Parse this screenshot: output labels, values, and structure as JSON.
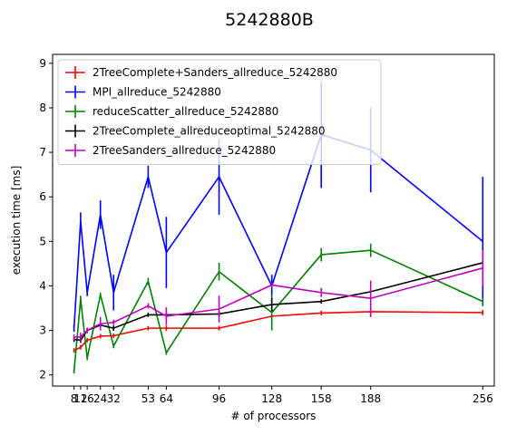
{
  "chart_data": {
    "type": "line",
    "title": "5242880B",
    "xlabel": "# of processors",
    "ylabel": "execution time [ms]",
    "xlim": [
      -5,
      263
    ],
    "ylim": [
      1.75,
      9.2
    ],
    "xticks": [
      8,
      12,
      16,
      24,
      32,
      53,
      64,
      96,
      128,
      158,
      188,
      256
    ],
    "xtick_labels": [
      "8",
      "12",
      "16",
      "24",
      "32",
      "53",
      "64",
      "96",
      "128",
      "158",
      "188",
      "256"
    ],
    "yticks": [
      2,
      3,
      4,
      5,
      6,
      7,
      8,
      9
    ],
    "legend_position": "upper-left",
    "series": [
      {
        "name": "2TreeComplete+Sanders_allreduce_5242880",
        "color": "#ff0000",
        "x": [
          8,
          12,
          16,
          24,
          32,
          53,
          64,
          96,
          128,
          158,
          188,
          256
        ],
        "y": [
          2.55,
          2.62,
          2.78,
          2.87,
          2.88,
          3.05,
          3.05,
          3.05,
          3.32,
          3.39,
          3.42,
          3.4
        ],
        "err": [
          0.05,
          0.05,
          0.05,
          0.05,
          0.05,
          0.05,
          0.06,
          0.05,
          0.06,
          0.05,
          0.12,
          0.06
        ]
      },
      {
        "name": "MPI_allreduce_5242880",
        "color": "#0000ff",
        "x": [
          8,
          12,
          16,
          24,
          32,
          53,
          64,
          96,
          128,
          158,
          188,
          256
        ],
        "y": [
          3.05,
          5.45,
          3.85,
          5.6,
          3.85,
          6.45,
          4.75,
          6.45,
          4.0,
          7.4,
          7.05,
          5.0
        ],
        "err": [
          0.08,
          0.2,
          0.08,
          0.32,
          0.4,
          0.25,
          0.8,
          0.85,
          0.25,
          1.2,
          0.95,
          1.45
        ]
      },
      {
        "name": "reduceScatter_allreduce_5242880",
        "color": "#008000",
        "x": [
          8,
          12,
          16,
          24,
          32,
          53,
          64,
          96,
          128,
          158,
          188,
          256
        ],
        "y": [
          2.08,
          3.7,
          2.38,
          3.8,
          2.65,
          4.1,
          2.5,
          4.32,
          3.4,
          4.7,
          4.8,
          3.65
        ],
        "err": [
          0.05,
          0.08,
          0.05,
          0.05,
          0.05,
          0.08,
          0.05,
          0.2,
          0.4,
          0.15,
          0.15,
          0.08
        ]
      },
      {
        "name": "2TreeComplete_allreduceoptimal_5242880",
        "color": "#000000",
        "x": [
          8,
          12,
          16,
          24,
          32,
          53,
          64,
          96,
          128,
          158,
          188,
          256
        ],
        "y": [
          2.8,
          2.78,
          3.0,
          3.12,
          3.05,
          3.35,
          3.35,
          3.37,
          3.58,
          3.65,
          3.87,
          4.52
        ],
        "err": [
          0.06,
          0.06,
          0.06,
          0.05,
          0.06,
          0.05,
          0.06,
          0.06,
          0.15,
          0.05,
          0.05,
          0.05
        ]
      },
      {
        "name": "2TreeSanders_allreduce_5242880",
        "color": "#bf00bf",
        "x": [
          8,
          12,
          16,
          24,
          32,
          53,
          64,
          96,
          128,
          158,
          188,
          256
        ],
        "y": [
          2.85,
          2.85,
          3.0,
          3.15,
          3.18,
          3.55,
          3.32,
          3.48,
          4.02,
          3.85,
          3.72,
          4.4
        ],
        "err": [
          0.06,
          0.1,
          0.05,
          0.15,
          0.06,
          0.06,
          0.2,
          0.3,
          0.05,
          0.1,
          0.4,
          0.4
        ]
      }
    ]
  }
}
